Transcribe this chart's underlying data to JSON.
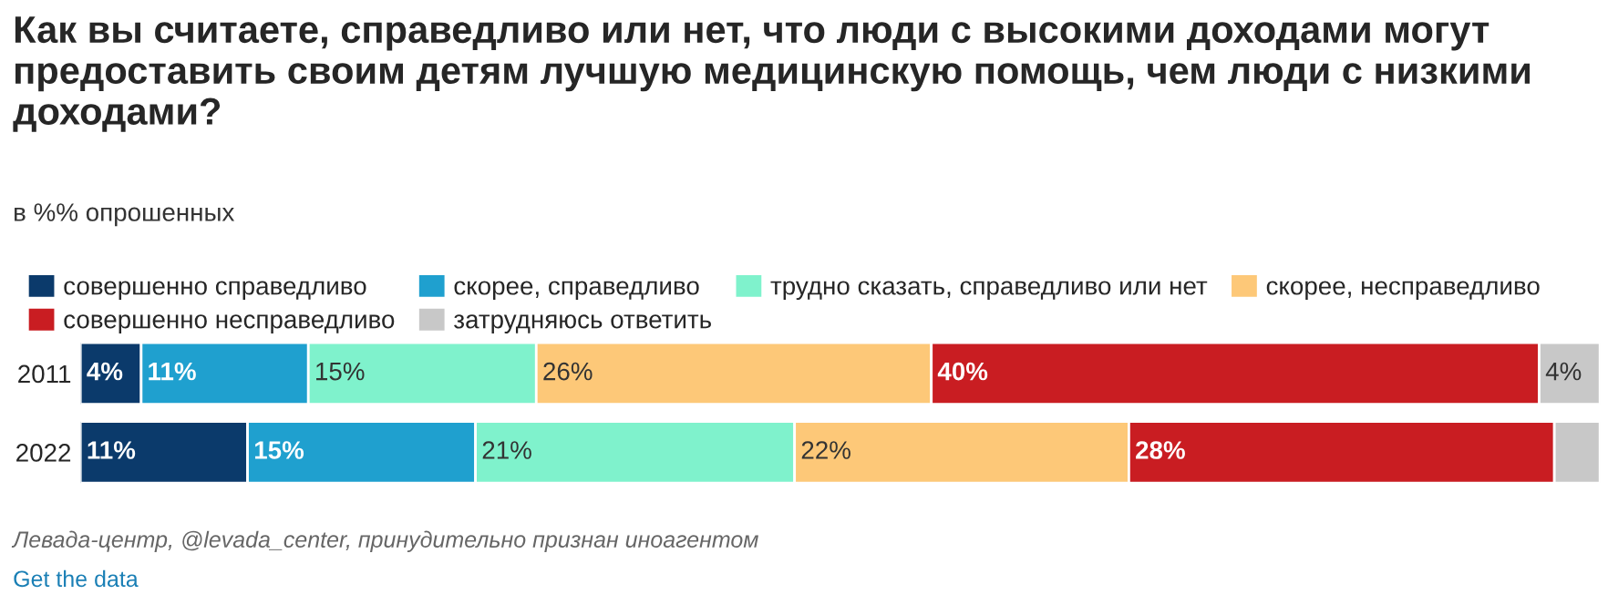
{
  "chart_data": {
    "type": "bar",
    "orientation": "horizontal",
    "stacked": true,
    "title": "Как вы считаете, справедливо или нет, что люди с высокими доходами могут предоставить своим детям лучшую медицинскую помощь, чем люди с низкими доходами?",
    "subtitle": "в %% опрошенных",
    "categories": [
      "2011",
      "2022"
    ],
    "legend": "top left",
    "grid": false,
    "series": [
      {
        "name": "совершенно справедливо",
        "color": "#0b3a6b",
        "values": [
          4,
          11
        ],
        "value_labels": [
          "4%",
          "11%"
        ]
      },
      {
        "name": "скорее, справедливо",
        "color": "#1fa0cf",
        "values": [
          11,
          15
        ],
        "value_labels": [
          "11%",
          "15%"
        ]
      },
      {
        "name": "трудно сказать, справедливо или нет",
        "color": "#7ff2cc",
        "values": [
          15,
          21
        ],
        "value_labels": [
          "15%",
          "21%"
        ]
      },
      {
        "name": "скорее, несправедливо",
        "color": "#fdc878",
        "values": [
          26,
          22
        ],
        "value_labels": [
          "26%",
          "22%"
        ]
      },
      {
        "name": "совершенно несправедливо",
        "color": "#c91d22",
        "values": [
          40,
          28
        ],
        "value_labels": [
          "40%",
          "28%"
        ]
      },
      {
        "name": "затрудняюсь ответить",
        "color": "#c8c8c8",
        "values": [
          4,
          3
        ],
        "value_labels": [
          "4%",
          null
        ]
      }
    ],
    "annotations": [
      "Левада-центр, @levada_center, принудительно признан иноагентом",
      "Get the data"
    ]
  }
}
